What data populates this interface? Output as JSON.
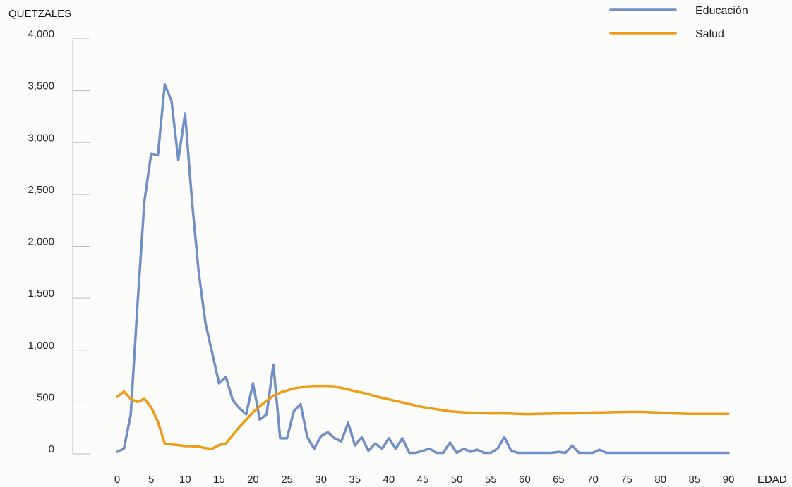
{
  "chart_data": {
    "type": "line",
    "title": "",
    "ylabel": "QUETZALES",
    "xlabel": "EDAD",
    "xlim": [
      0,
      90
    ],
    "ylim": [
      0,
      4000
    ],
    "xticks": [
      0,
      5,
      10,
      15,
      20,
      25,
      30,
      35,
      40,
      45,
      50,
      55,
      60,
      65,
      70,
      75,
      80,
      85,
      90
    ],
    "yticks": [
      0,
      500,
      1000,
      1500,
      2000,
      2500,
      3000,
      3500,
      4000
    ],
    "ytick_labels": [
      "0",
      "500",
      "1,000",
      "1,500",
      "2,000",
      "2,500",
      "3,000",
      "3,500",
      "4,000"
    ],
    "grid": false,
    "legend": "top-right",
    "x": [
      0,
      1,
      2,
      3,
      4,
      5,
      6,
      7,
      8,
      9,
      10,
      11,
      12,
      13,
      14,
      15,
      16,
      17,
      18,
      19,
      20,
      21,
      22,
      23,
      24,
      25,
      26,
      27,
      28,
      29,
      30,
      31,
      32,
      33,
      34,
      35,
      36,
      37,
      38,
      39,
      40,
      41,
      42,
      43,
      44,
      45,
      46,
      47,
      48,
      49,
      50,
      51,
      52,
      53,
      54,
      55,
      56,
      57,
      58,
      59,
      60,
      61,
      62,
      63,
      64,
      65,
      66,
      67,
      68,
      69,
      70,
      71,
      72,
      73,
      74,
      75,
      76,
      77,
      78,
      79,
      80,
      81,
      82,
      83,
      84,
      85,
      86,
      87,
      88,
      89,
      90
    ],
    "series": [
      {
        "name": "Educación",
        "color": "#6f8fc6",
        "values": [
          20,
          50,
          380,
          1450,
          2430,
          2890,
          2880,
          3560,
          3400,
          2830,
          3280,
          2450,
          1750,
          1260,
          970,
          680,
          740,
          520,
          440,
          380,
          680,
          330,
          380,
          860,
          150,
          150,
          410,
          480,
          160,
          50,
          170,
          210,
          150,
          120,
          300,
          80,
          160,
          30,
          100,
          50,
          150,
          50,
          150,
          10,
          10,
          30,
          50,
          10,
          10,
          110,
          10,
          50,
          20,
          40,
          10,
          10,
          50,
          160,
          30,
          10,
          10,
          10,
          10,
          10,
          10,
          20,
          10,
          80,
          10,
          10,
          10,
          40,
          10,
          10,
          10,
          10,
          10,
          10,
          10,
          10,
          10,
          10,
          10,
          10,
          10,
          10,
          10,
          10,
          10,
          10,
          10
        ]
      },
      {
        "name": "Salud",
        "color": "#ee9b16",
        "values": [
          550,
          600,
          530,
          500,
          530,
          450,
          310,
          100,
          90,
          85,
          75,
          75,
          70,
          55,
          50,
          85,
          100,
          180,
          260,
          330,
          400,
          460,
          510,
          560,
          590,
          610,
          630,
          640,
          650,
          655,
          655,
          655,
          650,
          635,
          620,
          605,
          590,
          575,
          555,
          540,
          525,
          510,
          495,
          480,
          465,
          450,
          440,
          430,
          420,
          410,
          405,
          400,
          397,
          395,
          392,
          390,
          390,
          390,
          388,
          385,
          383,
          383,
          385,
          387,
          388,
          390,
          390,
          390,
          392,
          395,
          397,
          398,
          400,
          402,
          403,
          404,
          405,
          405,
          403,
          400,
          397,
          393,
          390,
          388,
          386,
          385,
          385,
          385,
          385,
          385,
          385
        ]
      }
    ]
  }
}
